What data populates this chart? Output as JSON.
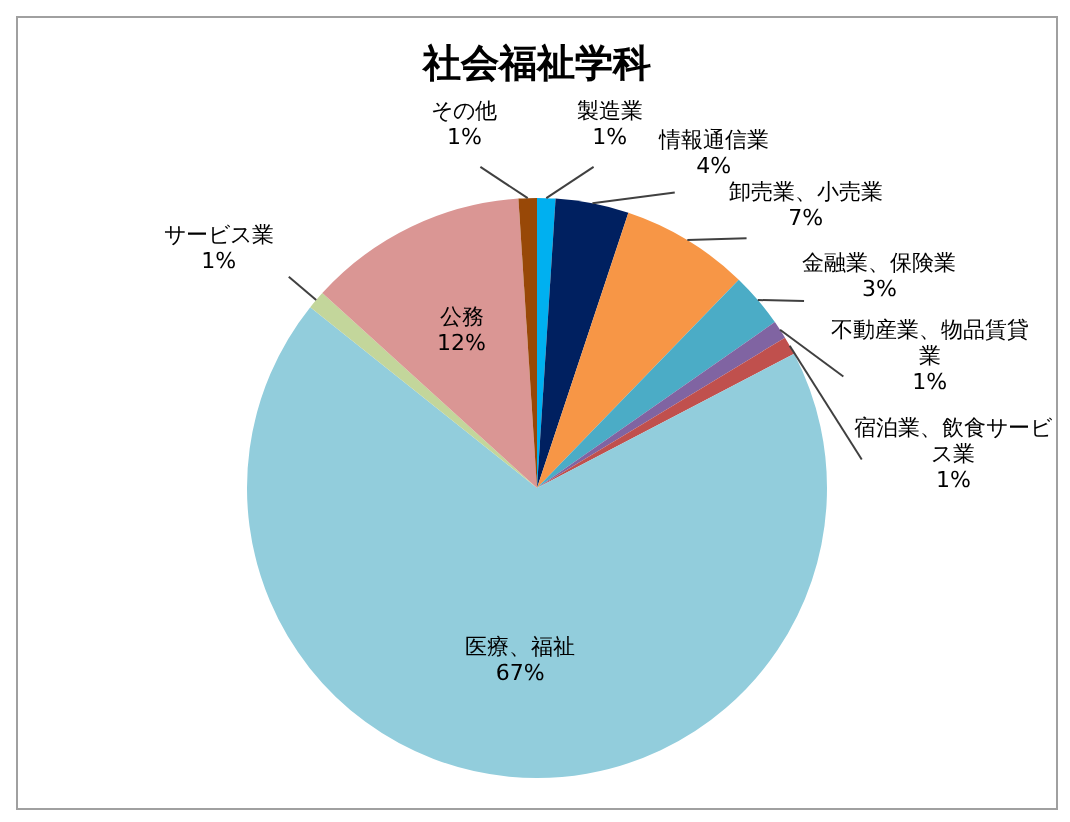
{
  "chart_data": {
    "type": "pie",
    "title": "社会福祉学科",
    "categories": [
      "製造業",
      "情報通信業",
      "卸売業、小売業",
      "金融業、保険業",
      "不動産業、物品賃貸業",
      "宿泊業、飲食サービス業",
      "医療、福祉",
      "サービス業",
      "公務",
      "その他"
    ],
    "values": [
      1,
      4,
      7,
      3,
      1,
      1,
      67,
      1,
      12,
      1
    ],
    "value_labels": [
      "1%",
      "4%",
      "7%",
      "3%",
      "1%",
      "1%",
      "67%",
      "1%",
      "12%",
      "1%"
    ],
    "colors": [
      "#00b0f0",
      "#002060",
      "#f79646",
      "#4bacc6",
      "#8064a2",
      "#c0504d",
      "#92cddc",
      "#c3d69b",
      "#da9694",
      "#984807"
    ],
    "legend": false
  }
}
